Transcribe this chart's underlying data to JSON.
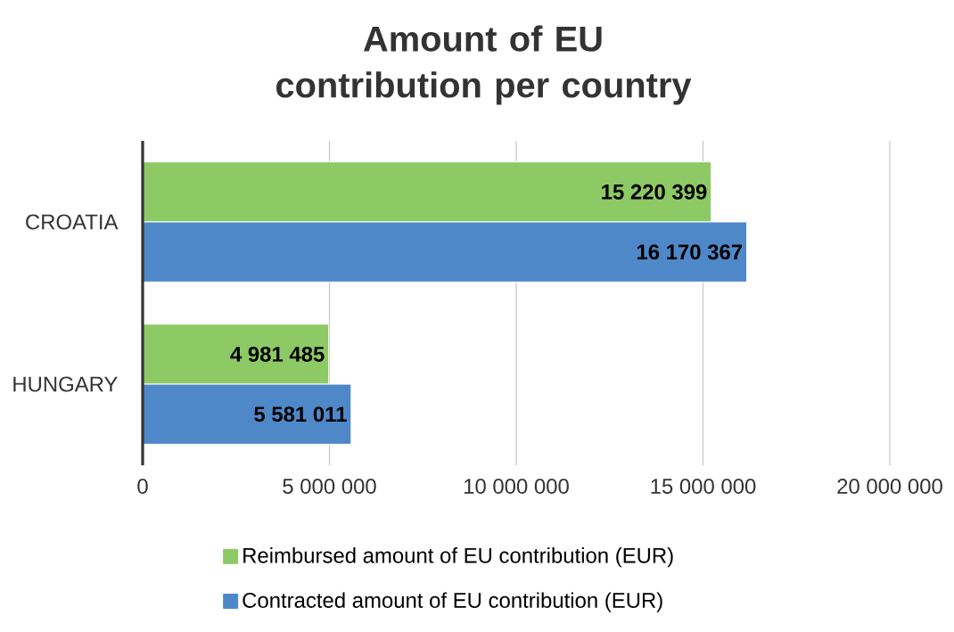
{
  "chart_data": {
    "type": "bar",
    "orientation": "horizontal",
    "title": "Amount of EU contribution per country",
    "categories": [
      "CROATIA",
      "HUNGARY"
    ],
    "series": [
      {
        "name": "Reimbursed amount of EU contribution (EUR)",
        "color": "#8dc965",
        "values": [
          15220399,
          4981485
        ],
        "value_labels": [
          "15 220 399",
          "4 981 485"
        ]
      },
      {
        "name": "Contracted amount of EU contribution (EUR)",
        "color": "#4f88c8",
        "values": [
          16170367,
          5581011
        ],
        "value_labels": [
          "16 170 367",
          "5 581 011"
        ]
      }
    ],
    "xlim": [
      0,
      20000000
    ],
    "xticks": [
      0,
      {
        "value": 5000000,
        "label": "5 000 000"
      },
      {
        "value": 10000000,
        "label": "10 000 000"
      },
      {
        "value": 15000000,
        "label": "15 000 000"
      },
      {
        "value": 20000000,
        "label": "20 000 000"
      }
    ],
    "grid": "x",
    "legend": "bottom"
  }
}
